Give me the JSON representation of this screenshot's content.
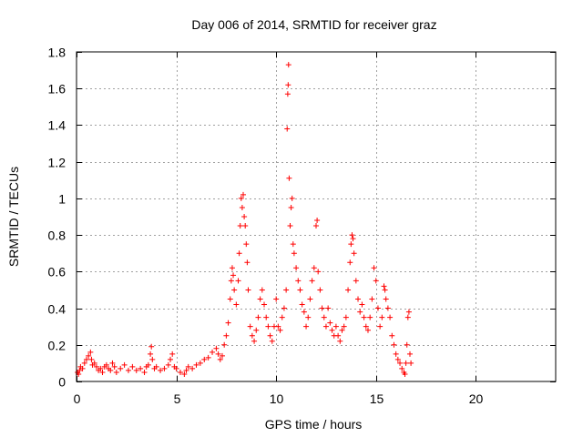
{
  "chart_data": {
    "type": "scatter",
    "title": "Day 006 of 2014, SRMTID for receiver graz",
    "xlabel": "GPS time / hours",
    "ylabel": "SRMTID / TECUs",
    "xlim": [
      0,
      24
    ],
    "ylim": [
      0,
      1.8
    ],
    "x_ticks": [
      0,
      5,
      10,
      15,
      20
    ],
    "y_ticks": [
      0,
      0.2,
      0.4,
      0.6,
      0.8,
      1,
      1.2,
      1.4,
      1.6,
      1.8
    ],
    "x_tick_labels": [
      "0",
      "5",
      "10",
      "15",
      "20"
    ],
    "y_tick_labels": [
      "0",
      "0.2",
      "0.4",
      "0.6",
      "0.8",
      "1",
      "1.2",
      "1.4",
      "1.6",
      "1.8"
    ],
    "grid": true,
    "marker": "+",
    "series": [
      {
        "name": "SRMTID",
        "color": "#ff0000",
        "points": [
          [
            0.05,
            0.05
          ],
          [
            0.1,
            0.04
          ],
          [
            0.15,
            0.06
          ],
          [
            0.2,
            0.08
          ],
          [
            0.3,
            0.07
          ],
          [
            0.4,
            0.1
          ],
          [
            0.5,
            0.12
          ],
          [
            0.6,
            0.14
          ],
          [
            0.7,
            0.16
          ],
          [
            0.75,
            0.12
          ],
          [
            0.8,
            0.09
          ],
          [
            0.9,
            0.1
          ],
          [
            1.0,
            0.08
          ],
          [
            1.1,
            0.06
          ],
          [
            1.2,
            0.07
          ],
          [
            1.3,
            0.05
          ],
          [
            1.4,
            0.08
          ],
          [
            1.5,
            0.09
          ],
          [
            1.6,
            0.07
          ],
          [
            1.7,
            0.06
          ],
          [
            1.8,
            0.1
          ],
          [
            1.9,
            0.08
          ],
          [
            2.0,
            0.05
          ],
          [
            2.2,
            0.07
          ],
          [
            2.4,
            0.09
          ],
          [
            2.6,
            0.06
          ],
          [
            2.8,
            0.08
          ],
          [
            3.0,
            0.06
          ],
          [
            3.2,
            0.07
          ],
          [
            3.4,
            0.05
          ],
          [
            3.5,
            0.08
          ],
          [
            3.6,
            0.09
          ],
          [
            3.7,
            0.15
          ],
          [
            3.75,
            0.19
          ],
          [
            3.8,
            0.12
          ],
          [
            3.9,
            0.07
          ],
          [
            4.0,
            0.08
          ],
          [
            4.2,
            0.06
          ],
          [
            4.4,
            0.07
          ],
          [
            4.6,
            0.09
          ],
          [
            4.7,
            0.12
          ],
          [
            4.8,
            0.15
          ],
          [
            4.9,
            0.08
          ],
          [
            5.0,
            0.07
          ],
          [
            5.2,
            0.05
          ],
          [
            5.4,
            0.04
          ],
          [
            5.5,
            0.06
          ],
          [
            5.6,
            0.08
          ],
          [
            5.8,
            0.07
          ],
          [
            6.0,
            0.09
          ],
          [
            6.2,
            0.1
          ],
          [
            6.4,
            0.12
          ],
          [
            6.6,
            0.13
          ],
          [
            6.8,
            0.16
          ],
          [
            7.0,
            0.18
          ],
          [
            7.1,
            0.15
          ],
          [
            7.2,
            0.12
          ],
          [
            7.3,
            0.14
          ],
          [
            7.4,
            0.2
          ],
          [
            7.5,
            0.25
          ],
          [
            7.6,
            0.32
          ],
          [
            7.7,
            0.45
          ],
          [
            7.75,
            0.55
          ],
          [
            7.8,
            0.62
          ],
          [
            7.85,
            0.58
          ],
          [
            7.9,
            0.5
          ],
          [
            8.0,
            0.42
          ],
          [
            8.1,
            0.55
          ],
          [
            8.15,
            0.7
          ],
          [
            8.2,
            0.85
          ],
          [
            8.25,
            1.0
          ],
          [
            8.3,
            0.95
          ],
          [
            8.35,
            1.02
          ],
          [
            8.4,
            0.9
          ],
          [
            8.45,
            0.85
          ],
          [
            8.5,
            0.75
          ],
          [
            8.55,
            0.65
          ],
          [
            8.6,
            0.5
          ],
          [
            8.7,
            0.3
          ],
          [
            8.8,
            0.25
          ],
          [
            8.9,
            0.22
          ],
          [
            9.0,
            0.28
          ],
          [
            9.1,
            0.35
          ],
          [
            9.2,
            0.45
          ],
          [
            9.3,
            0.5
          ],
          [
            9.4,
            0.42
          ],
          [
            9.5,
            0.35
          ],
          [
            9.6,
            0.3
          ],
          [
            9.7,
            0.25
          ],
          [
            9.8,
            0.22
          ],
          [
            9.9,
            0.3
          ],
          [
            10.0,
            0.45
          ],
          [
            10.1,
            0.3
          ],
          [
            10.2,
            0.28
          ],
          [
            10.3,
            0.35
          ],
          [
            10.4,
            0.4
          ],
          [
            10.5,
            0.5
          ],
          [
            10.55,
            1.38
          ],
          [
            10.58,
            1.57
          ],
          [
            10.6,
            1.62
          ],
          [
            10.62,
            1.73
          ],
          [
            10.65,
            1.11
          ],
          [
            10.7,
            0.85
          ],
          [
            10.75,
            0.95
          ],
          [
            10.8,
            1.0
          ],
          [
            10.85,
            0.75
          ],
          [
            10.9,
            0.7
          ],
          [
            11.0,
            0.62
          ],
          [
            11.1,
            0.55
          ],
          [
            11.2,
            0.5
          ],
          [
            11.3,
            0.42
          ],
          [
            11.4,
            0.38
          ],
          [
            11.5,
            0.3
          ],
          [
            11.6,
            0.35
          ],
          [
            11.7,
            0.45
          ],
          [
            11.8,
            0.55
          ],
          [
            11.9,
            0.62
          ],
          [
            12.0,
            0.85
          ],
          [
            12.05,
            0.88
          ],
          [
            12.1,
            0.6
          ],
          [
            12.2,
            0.5
          ],
          [
            12.3,
            0.4
          ],
          [
            12.4,
            0.35
          ],
          [
            12.5,
            0.3
          ],
          [
            12.6,
            0.4
          ],
          [
            12.7,
            0.32
          ],
          [
            12.8,
            0.28
          ],
          [
            12.9,
            0.25
          ],
          [
            13.0,
            0.3
          ],
          [
            13.1,
            0.25
          ],
          [
            13.2,
            0.22
          ],
          [
            13.3,
            0.28
          ],
          [
            13.4,
            0.3
          ],
          [
            13.5,
            0.35
          ],
          [
            13.6,
            0.5
          ],
          [
            13.7,
            0.65
          ],
          [
            13.75,
            0.75
          ],
          [
            13.8,
            0.8
          ],
          [
            13.85,
            0.78
          ],
          [
            13.9,
            0.7
          ],
          [
            14.0,
            0.55
          ],
          [
            14.1,
            0.45
          ],
          [
            14.2,
            0.38
          ],
          [
            14.3,
            0.42
          ],
          [
            14.4,
            0.35
          ],
          [
            14.5,
            0.3
          ],
          [
            14.6,
            0.28
          ],
          [
            14.7,
            0.35
          ],
          [
            14.8,
            0.45
          ],
          [
            14.9,
            0.62
          ],
          [
            15.0,
            0.55
          ],
          [
            15.1,
            0.4
          ],
          [
            15.2,
            0.3
          ],
          [
            15.3,
            0.35
          ],
          [
            15.4,
            0.52
          ],
          [
            15.45,
            0.5
          ],
          [
            15.5,
            0.45
          ],
          [
            15.6,
            0.4
          ],
          [
            15.7,
            0.35
          ],
          [
            15.8,
            0.25
          ],
          [
            15.9,
            0.2
          ],
          [
            16.0,
            0.15
          ],
          [
            16.1,
            0.12
          ],
          [
            16.2,
            0.1
          ],
          [
            16.3,
            0.07
          ],
          [
            16.4,
            0.05
          ],
          [
            16.45,
            0.04
          ],
          [
            16.5,
            0.1
          ],
          [
            16.55,
            0.2
          ],
          [
            16.6,
            0.35
          ],
          [
            16.65,
            0.38
          ],
          [
            16.7,
            0.15
          ],
          [
            16.75,
            0.1
          ]
        ]
      }
    ]
  }
}
